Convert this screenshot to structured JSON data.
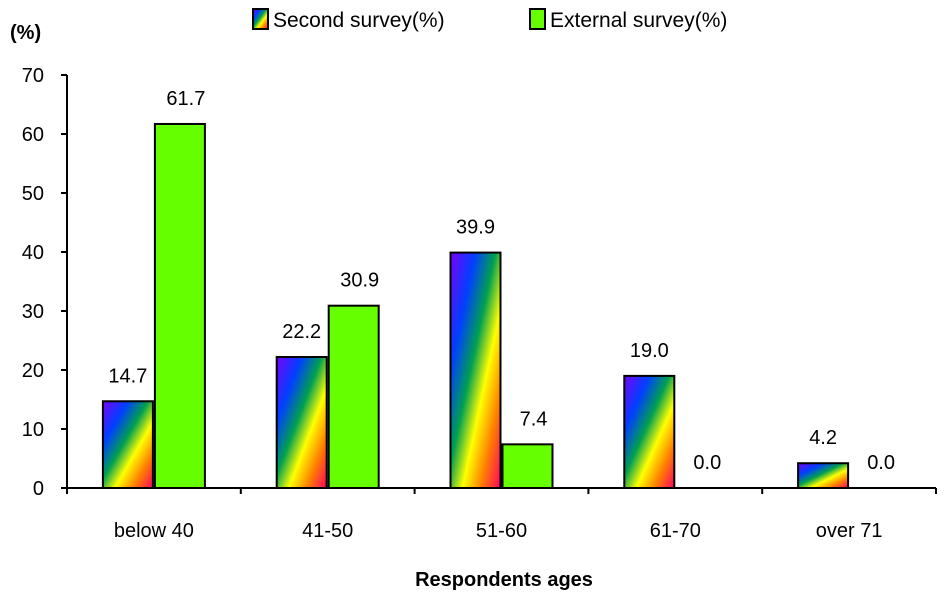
{
  "chart_data": {
    "type": "bar",
    "ylabel": "(%)",
    "xlabel": "Respondents ages",
    "ylim": [
      0,
      70
    ],
    "yticks": [
      "0",
      "10",
      "20",
      "30",
      "40",
      "50",
      "60",
      "70"
    ],
    "categories": [
      "below 40",
      "41-50",
      "51-60",
      "61-70",
      "over 71"
    ],
    "series": [
      {
        "name": "Second survey(%)",
        "values": [
          14.7,
          22.2,
          39.9,
          19.0,
          4.2
        ],
        "labels": [
          "14.7",
          "22.2",
          "39.9",
          "19.0",
          "4.2"
        ],
        "fill": "rainbow-gradient"
      },
      {
        "name": "External survey(%)",
        "values": [
          61.7,
          30.9,
          7.4,
          0.0,
          0.0
        ],
        "labels": [
          "61.7",
          "30.9",
          "7.4",
          "0.0",
          "0.0"
        ],
        "fill": "#66ff00"
      }
    ],
    "legend_position": "top",
    "grid": false
  }
}
